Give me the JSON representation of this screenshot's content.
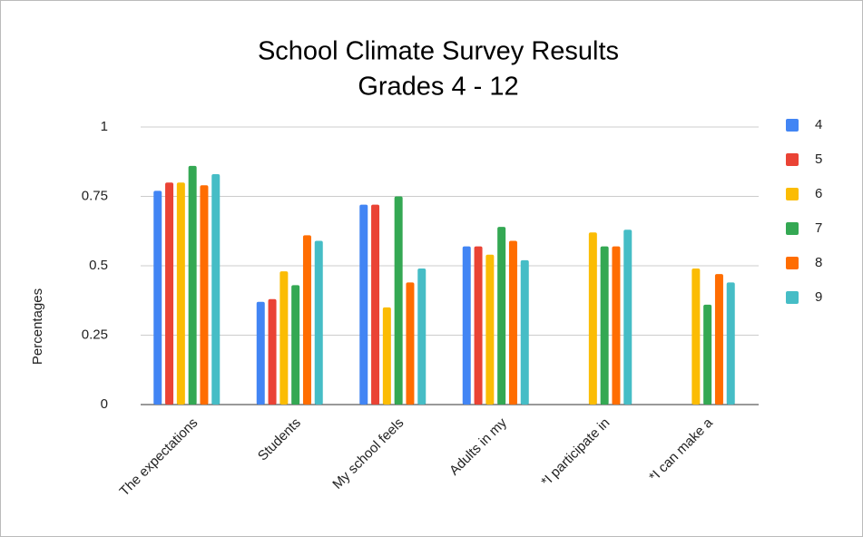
{
  "chart_data": {
    "type": "bar",
    "title": "School Climate Survey Results",
    "subtitle": "Grades 4 - 12",
    "y_label": "Percentages",
    "categories": [
      "The expectations",
      "Students",
      "My school feels",
      "Adults in my",
      "*I participate in",
      "*I can make a"
    ],
    "series": [
      {
        "name": "4",
        "color": "#4285f4",
        "values": [
          0.77,
          0.37,
          0.72,
          0.57,
          null,
          null
        ]
      },
      {
        "name": "5",
        "color": "#ea4335",
        "values": [
          0.8,
          0.38,
          0.72,
          0.57,
          null,
          null
        ]
      },
      {
        "name": "6",
        "color": "#fbbc04",
        "values": [
          0.8,
          0.48,
          0.35,
          0.54,
          0.62,
          0.49
        ]
      },
      {
        "name": "7",
        "color": "#34a853",
        "values": [
          0.86,
          0.43,
          0.75,
          0.64,
          0.57,
          0.36
        ]
      },
      {
        "name": "8",
        "color": "#ff6d01",
        "values": [
          0.79,
          0.61,
          0.44,
          0.59,
          0.57,
          0.47
        ]
      },
      {
        "name": "9",
        "color": "#46bdc6",
        "values": [
          0.83,
          0.59,
          0.49,
          0.52,
          0.63,
          0.44
        ]
      }
    ],
    "ylim": [
      0,
      1
    ],
    "yticks": [
      0,
      0.25,
      0.5,
      0.75,
      1
    ],
    "grid": true,
    "legend": "right"
  }
}
